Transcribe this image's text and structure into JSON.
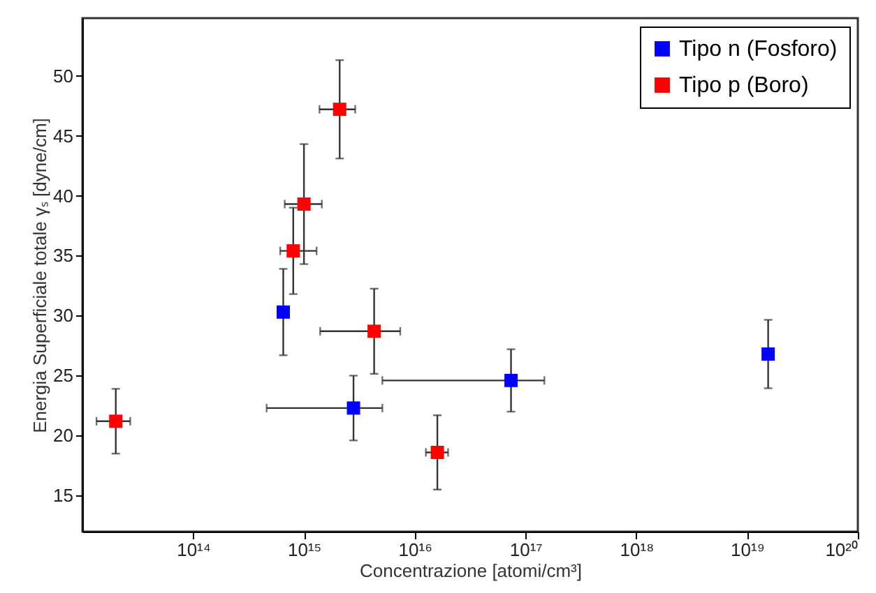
{
  "chart_data": {
    "type": "scatter",
    "xlabel": "Concentrazione [atomi/cm³]",
    "ylabel": "Energia Superficiale totale γₛ [dyne/cm]",
    "log": "x",
    "xlim": [
      10000000000000.0,
      1e+20
    ],
    "ylim": [
      12,
      54.8
    ],
    "xticks": [
      {
        "value": 100000000000000.0,
        "label": "10¹⁴"
      },
      {
        "value": 1000000000000000.0,
        "label": "10¹⁵"
      },
      {
        "value": 1e+16,
        "label": "10¹⁶"
      },
      {
        "value": 1e+17,
        "label": "10¹⁷"
      },
      {
        "value": 1e+18,
        "label": "10¹⁸"
      },
      {
        "value": 1e+19,
        "label": "10¹⁹"
      },
      {
        "value": 1e+20,
        "label": "10²⁰"
      }
    ],
    "yticks": [
      15,
      20,
      25,
      30,
      35,
      40,
      45,
      50
    ],
    "grid": false,
    "legend": "top right",
    "marker": "square",
    "series": [
      {
        "name": "Tipo n (Fosforo)",
        "color": "#0000ff",
        "x": [
          650000000000000.0,
          2800000000000000.0,
          7.4e+16,
          1.55e+19
        ],
        "values": [
          30.3,
          22.3,
          24.6,
          26.8
        ],
        "errors": [
          3.6,
          2.7,
          2.6,
          2.85
        ],
        "xerrors": [
          null,
          [
            460000000000000.0,
            5100000000000000.0
          ],
          [
            5100000000000000.0,
            1.48e+17
          ],
          null
        ]
      },
      {
        "name": "Tipo p (Boro)",
        "color": "#ff0000",
        "x": [
          20000000000000.0,
          800000000000000.0,
          1000000000000000.0,
          2100000000000000.0,
          4300000000000000.0,
          1.6e+16
        ],
        "values": [
          21.2,
          35.4,
          39.3,
          47.2,
          28.7,
          18.6
        ],
        "errors": [
          2.7,
          3.6,
          5.0,
          4.1,
          3.55,
          3.1
        ],
        "xerrors": [
          [
            13400000000000.0,
            27000000000000.0
          ],
          [
            610000000000000.0,
            1300000000000000.0
          ],
          [
            670000000000000.0,
            1450000000000000.0
          ],
          [
            1380000000000000.0,
            2900000000000000.0
          ],
          [
            1400000000000000.0,
            7400000000000000.0
          ],
          [
            1.26e+16,
            2e+16
          ]
        ]
      }
    ]
  }
}
